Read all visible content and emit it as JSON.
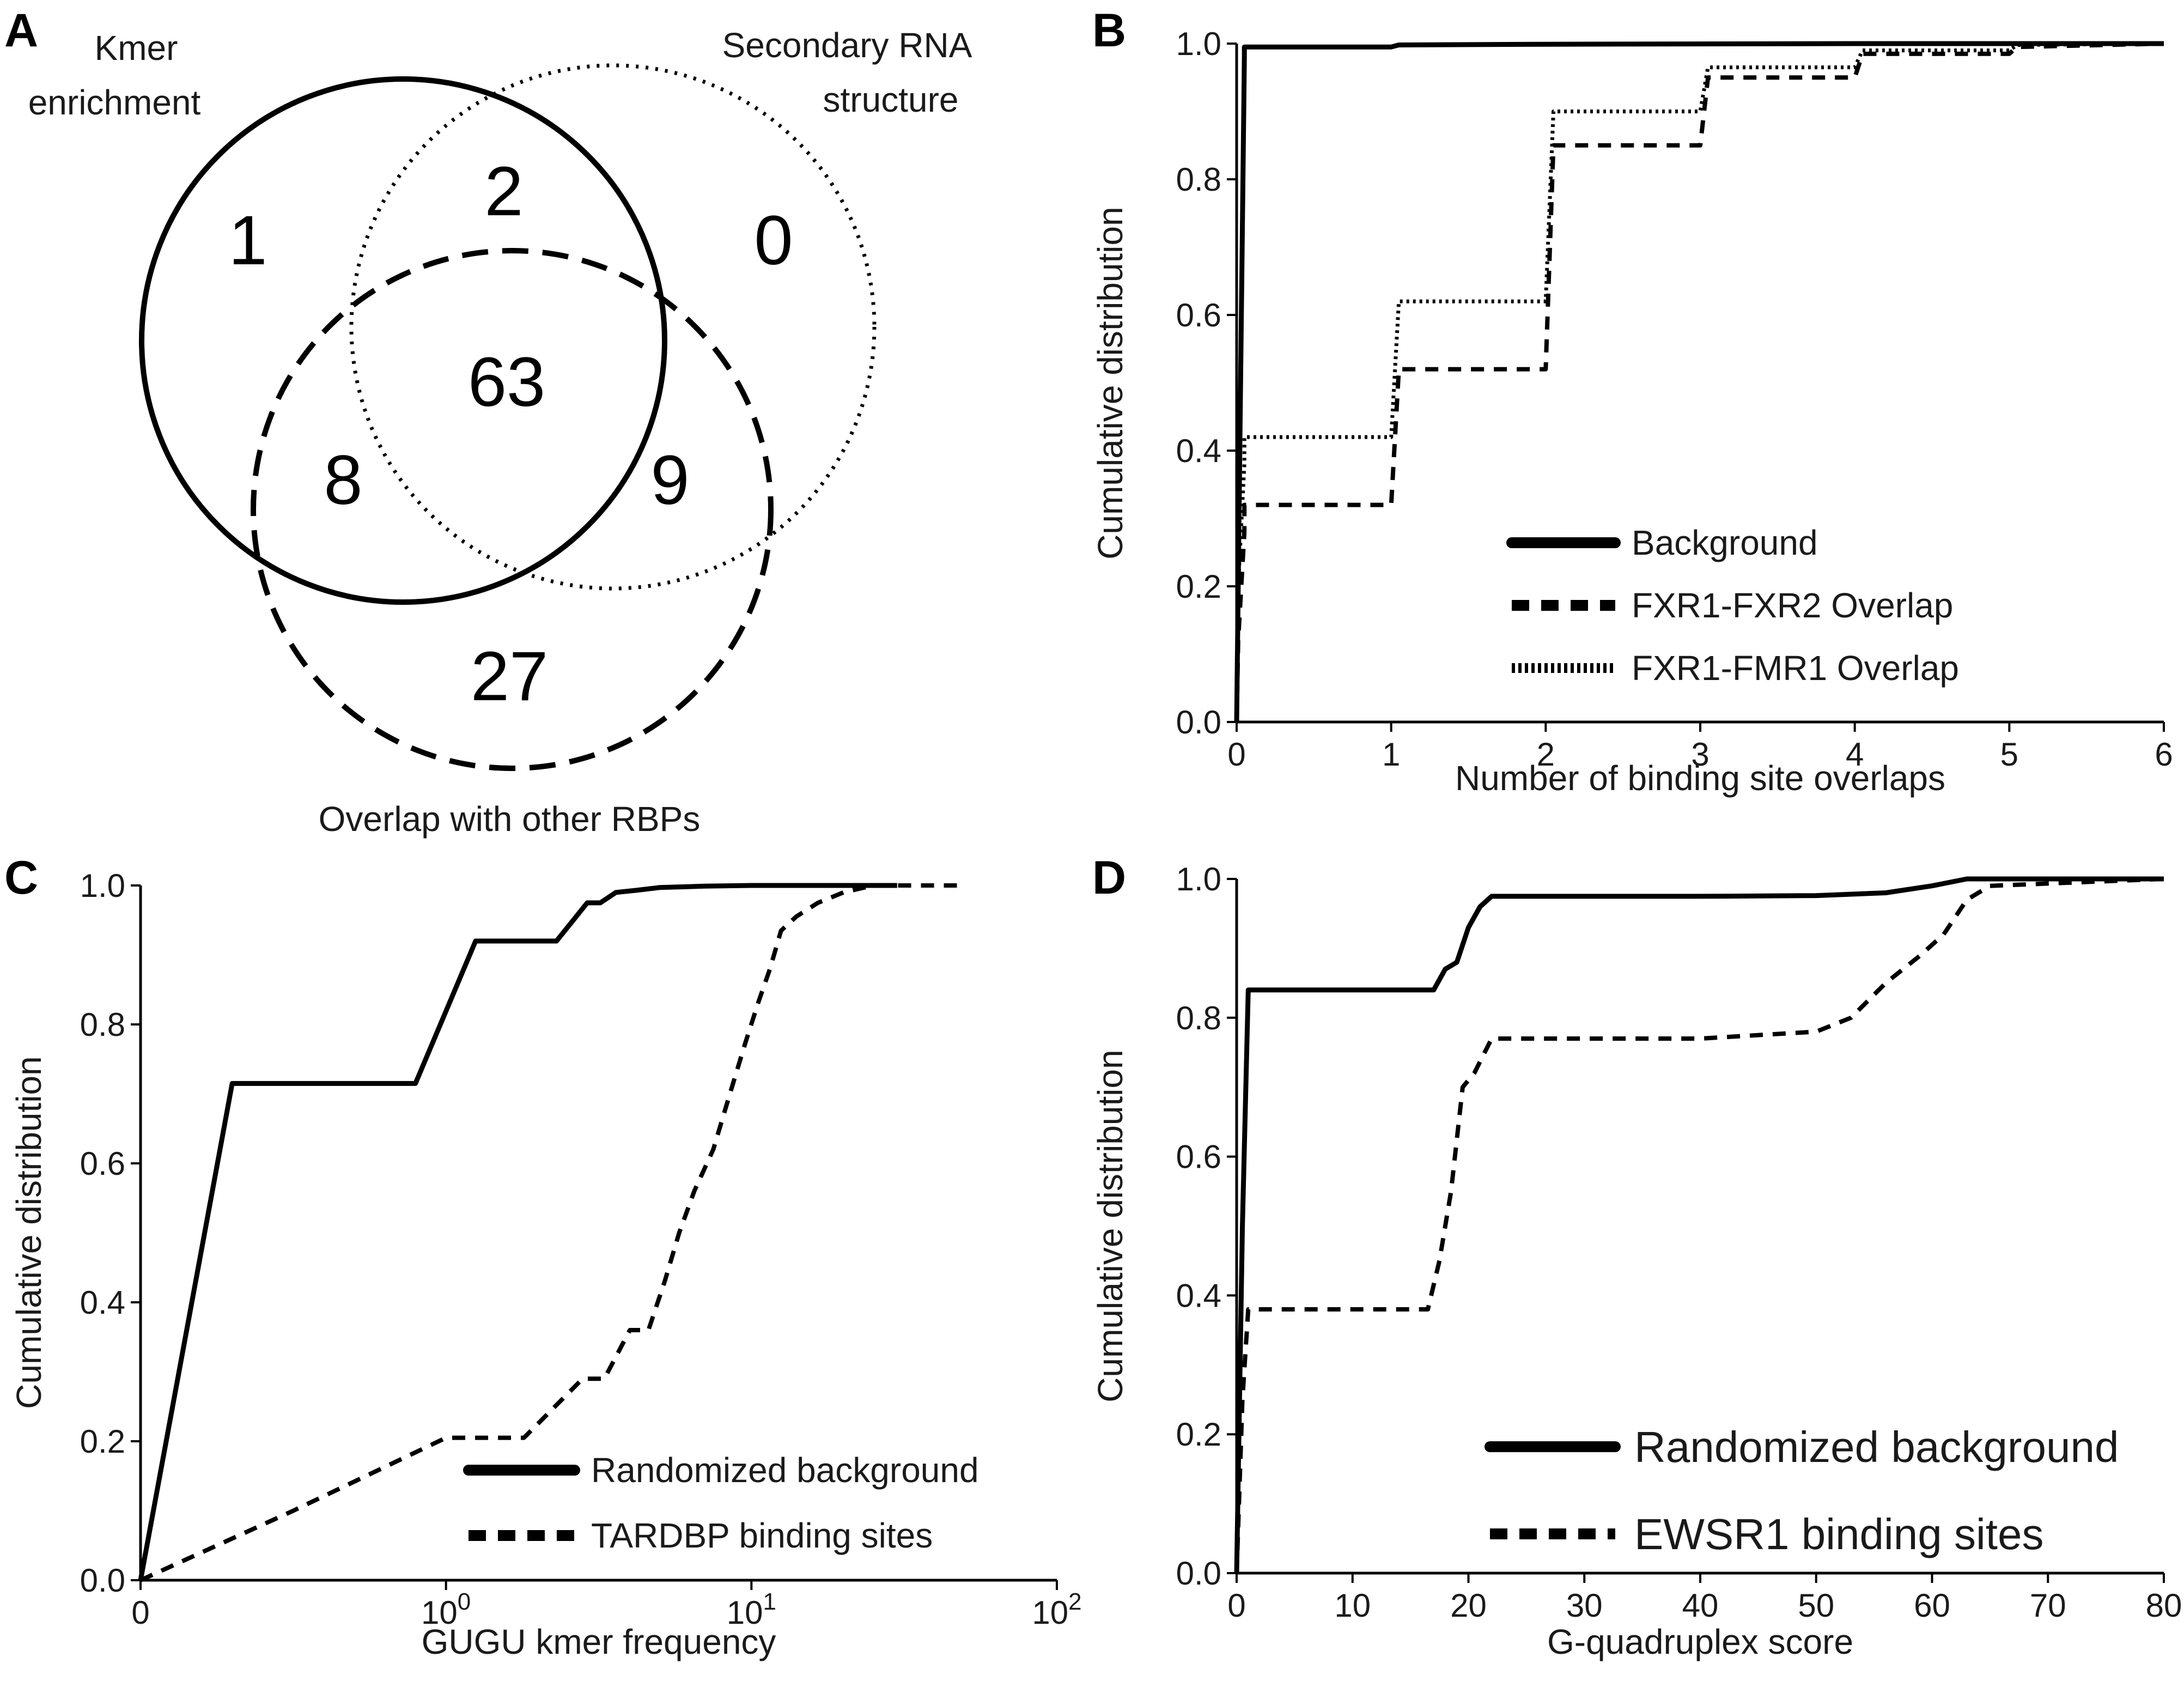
{
  "panels": {
    "A": {
      "label": "A",
      "set_labels": {
        "kmer": [
          "Kmer",
          "enrichment"
        ],
        "secondary": [
          "Secondary RNA",
          "structure"
        ],
        "overlap": [
          "Overlap with other RBPs"
        ]
      },
      "counts": {
        "kmer_only": "1",
        "kmer_secondary": "2",
        "secondary_only": "0",
        "all_three": "63",
        "kmer_overlap": "8",
        "secondary_overlap": "9",
        "overlap_only": "27"
      }
    },
    "B": {
      "label": "B"
    },
    "C": {
      "label": "C"
    },
    "D": {
      "label": "D"
    }
  },
  "chart_data": [
    {
      "id": "B",
      "type": "line",
      "xlabel": "Number of binding site overlaps",
      "ylabel": "Cumulative distribution",
      "xlim": [
        0,
        6
      ],
      "ylim": [
        0,
        1
      ],
      "xticks": [
        0,
        1,
        2,
        3,
        4,
        5,
        6
      ],
      "xtick_labels": [
        "0",
        "1",
        "2",
        "3",
        "4",
        "5",
        "6"
      ],
      "yticks": [
        0,
        0.2,
        0.4,
        0.6,
        0.8,
        1.0
      ],
      "ytick_labels": [
        "0.0",
        "0.2",
        "0.4",
        "0.6",
        "0.8",
        "1.0"
      ],
      "legend": "center-right",
      "series": [
        {
          "name": "Background",
          "style": "solid",
          "x": [
            0,
            0.05,
            0.05,
            1,
            1.05,
            2,
            4,
            6
          ],
          "y": [
            0,
            0.98,
            0.995,
            0.995,
            0.998,
            0.999,
            1.0,
            1.0
          ]
        },
        {
          "name": "FXR1-FXR2 Overlap",
          "style": "dashed",
          "x": [
            0,
            0.01,
            0.05,
            0.05,
            1.0,
            1.05,
            2.0,
            2.05,
            3.0,
            3.05,
            4.0,
            4.05,
            5.0,
            5.05,
            6
          ],
          "y": [
            0,
            0.12,
            0.28,
            0.32,
            0.32,
            0.52,
            0.52,
            0.85,
            0.85,
            0.95,
            0.95,
            0.985,
            0.985,
            0.995,
            1.0
          ]
        },
        {
          "name": "FXR1-FMR1 Overlap",
          "style": "dotted",
          "x": [
            0,
            0.01,
            0.05,
            0.05,
            1.0,
            1.05,
            2.0,
            2.05,
            3.0,
            3.05,
            4.0,
            4.05,
            5.0,
            5.05,
            6
          ],
          "y": [
            0,
            0.2,
            0.38,
            0.42,
            0.42,
            0.62,
            0.62,
            0.9,
            0.9,
            0.965,
            0.965,
            0.99,
            0.99,
            0.998,
            1.0
          ]
        }
      ]
    },
    {
      "id": "C",
      "type": "line",
      "xscale": "symlog",
      "xlabel": "GUGU kmer frequency",
      "ylabel": "Cumulative distribution",
      "xlim": [
        0,
        100
      ],
      "ylim": [
        0,
        1
      ],
      "xticks": [
        0,
        1,
        10,
        100
      ],
      "xtick_labels": [
        {
          "base": "0",
          "exp": ""
        },
        {
          "base": "10",
          "exp": "0"
        },
        {
          "base": "10",
          "exp": "1"
        },
        {
          "base": "10",
          "exp": "2"
        }
      ],
      "yticks": [
        0,
        0.2,
        0.4,
        0.6,
        0.8,
        1.0
      ],
      "ytick_labels": [
        "0.0",
        "0.2",
        "0.4",
        "0.6",
        "0.8",
        "1.0"
      ],
      "legend": "lower-right",
      "series": [
        {
          "name": "Randomized background",
          "style": "solid",
          "x": [
            0,
            0.3,
            0.9,
            1.25,
            2.3,
            2.9,
            3.2,
            3.6,
            4.2,
            5,
            7,
            10,
            20,
            30
          ],
          "y": [
            0,
            0.715,
            0.715,
            0.92,
            0.92,
            0.975,
            0.975,
            0.99,
            0.993,
            0.997,
            0.999,
            1.0,
            1.0,
            1.0
          ]
        },
        {
          "name": "TARDBP binding sites",
          "style": "dashed",
          "x": [
            0,
            0.5,
            1.0,
            1.8,
            2.8,
            3.3,
            4.0,
            4.6,
            5.2,
            5.8,
            6.5,
            7.5,
            8.5,
            9.5,
            10.5,
            11.5,
            12.5,
            14.0,
            16.5,
            20.0,
            25.0,
            32.0,
            50.0
          ],
          "y": [
            0,
            0.1,
            0.205,
            0.205,
            0.29,
            0.29,
            0.36,
            0.36,
            0.43,
            0.5,
            0.56,
            0.62,
            0.7,
            0.77,
            0.83,
            0.88,
            0.935,
            0.955,
            0.975,
            0.99,
            1.0,
            1.0,
            1.0
          ]
        }
      ]
    },
    {
      "id": "D",
      "type": "line",
      "xlabel": "G-quadruplex score",
      "ylabel": "Cumulative distribution",
      "xlim": [
        0,
        80
      ],
      "ylim": [
        0,
        1
      ],
      "xticks": [
        0,
        10,
        20,
        30,
        40,
        50,
        60,
        70,
        80
      ],
      "xtick_labels": [
        "0",
        "10",
        "20",
        "30",
        "40",
        "50",
        "60",
        "70",
        "80"
      ],
      "yticks": [
        0,
        0.2,
        0.4,
        0.6,
        0.8,
        1.0
      ],
      "ytick_labels": [
        "0.0",
        "0.2",
        "0.4",
        "0.6",
        "0.8",
        "1.0"
      ],
      "legend": "lower-right",
      "series": [
        {
          "name": "Randomized background",
          "style": "solid",
          "x": [
            0,
            0.5,
            1.0,
            17.0,
            18.0,
            19.0,
            20.0,
            21.0,
            22.0,
            40.0,
            50.0,
            56.0,
            60.0,
            63.0,
            65.0,
            80.0
          ],
          "y": [
            0,
            0.5,
            0.84,
            0.84,
            0.87,
            0.88,
            0.93,
            0.96,
            0.975,
            0.975,
            0.976,
            0.98,
            0.99,
            1.0,
            1.0,
            1.0
          ]
        },
        {
          "name": "EWSR1 binding sites",
          "style": "dashed",
          "x": [
            0,
            0.5,
            1.0,
            16.5,
            17.5,
            18.5,
            19.5,
            20.5,
            22.0,
            40.0,
            50.0,
            53.0,
            56.0,
            59.0,
            61.0,
            63.0,
            65.0,
            80.0
          ],
          "y": [
            0,
            0.25,
            0.38,
            0.38,
            0.45,
            0.55,
            0.7,
            0.72,
            0.77,
            0.77,
            0.78,
            0.8,
            0.85,
            0.89,
            0.92,
            0.97,
            0.99,
            1.0
          ]
        }
      ]
    }
  ]
}
